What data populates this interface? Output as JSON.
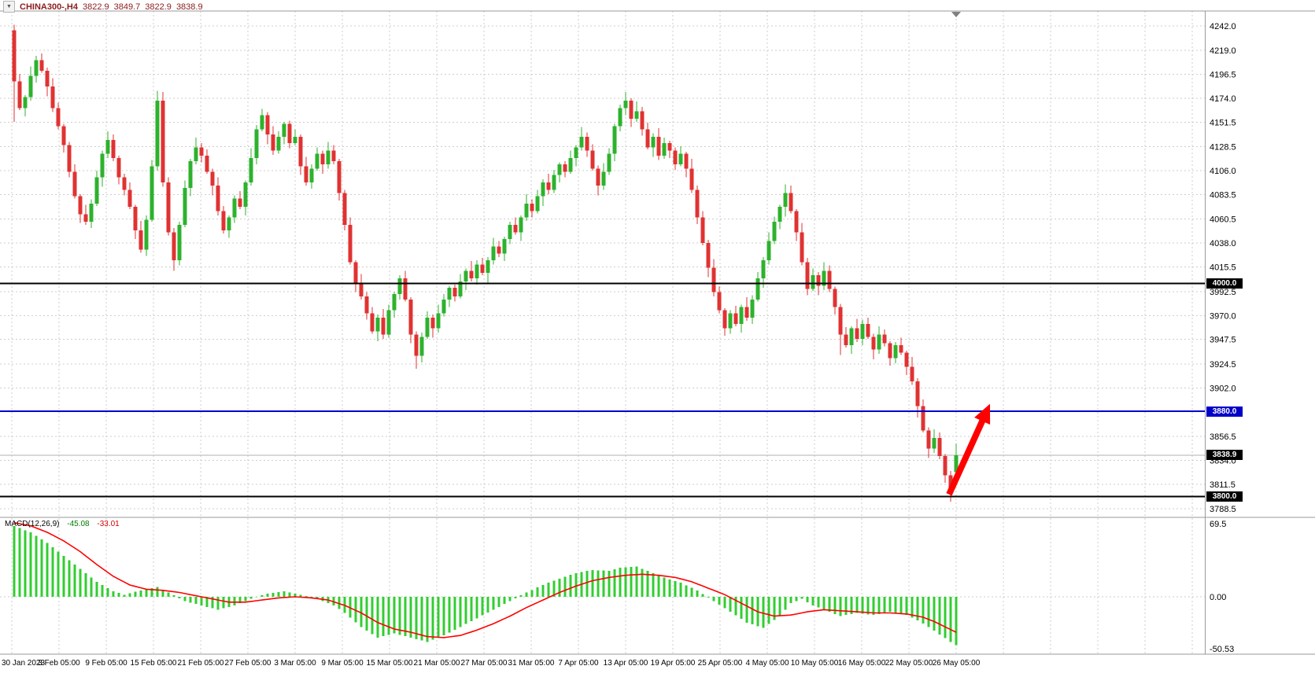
{
  "window": {
    "symbol": "CHINA300-,H4"
  },
  "icons": {
    "one_click": "▼",
    "chart_shift_marker": "▼"
  },
  "colors": {
    "bull": "#2DB22D",
    "bear": "#E03232",
    "grid": "#CDCDCD",
    "macd_hist": "#32CD32",
    "macd_signal": "#FF0000",
    "current_line": "#B0B0B0",
    "header_text": "#8B1C1C",
    "frame": "#9A9A9A",
    "arrow": "#FF0000",
    "hline_black": "#000000",
    "hline_blue": "#0000C8"
  },
  "chart_data": [
    {
      "type": "candlestick",
      "symbol": "CHINA300-",
      "timeframe": "H4",
      "last_candle": {
        "open": "3822.9",
        "high": "3849.7",
        "low": "3822.9",
        "close": "3838.9"
      },
      "price_range": [
        3788.5,
        4242.0
      ],
      "y_ticks": [
        "4242.0",
        "4219.0",
        "4196.5",
        "4174.0",
        "4151.5",
        "4128.5",
        "4106.0",
        "4083.5",
        "4060.5",
        "4038.0",
        "4015.5",
        "3992.5",
        "3970.0",
        "3947.5",
        "3924.5",
        "3902.0",
        "3856.5",
        "3834.0",
        "3811.5",
        "3788.5"
      ],
      "x_labels": [
        "30 Jan 2023",
        "3 Feb 05:00",
        "9 Feb 05:00",
        "15 Feb 05:00",
        "21 Feb 05:00",
        "27 Feb 05:00",
        "3 Mar 05:00",
        "9 Mar 05:00",
        "15 Mar 05:00",
        "21 Mar 05:00",
        "27 Mar 05:00",
        "31 Mar 05:00",
        "7 Apr 05:00",
        "13 Apr 05:00",
        "19 Apr 05:00",
        "25 Apr 05:00",
        "4 May 05:00",
        "10 May 05:00",
        "16 May 05:00",
        "22 May 05:00",
        "26 May 05:00"
      ],
      "first_open": 4238,
      "closes": [
        4190,
        4165,
        4175,
        4195,
        4210,
        4200,
        4185,
        4165,
        4148,
        4130,
        4105,
        4082,
        4065,
        4058,
        4075,
        4100,
        4122,
        4135,
        4118,
        4100,
        4088,
        4072,
        4050,
        4032,
        4060,
        4110,
        4172,
        4095,
        4048,
        4022,
        4055,
        4090,
        4115,
        4128,
        4120,
        4105,
        4092,
        4068,
        4050,
        4062,
        4080,
        4072,
        4095,
        4118,
        4145,
        4158,
        4140,
        4125,
        4138,
        4150,
        4132,
        4138,
        4110,
        4095,
        4108,
        4122,
        4112,
        4125,
        4115,
        4085,
        4055,
        4020,
        4000,
        3988,
        3972,
        3955,
        3968,
        3952,
        3975,
        3990,
        4005,
        3985,
        3952,
        3932,
        3950,
        3968,
        3958,
        3972,
        3985,
        3996,
        3988,
        4002,
        4012,
        4005,
        4018,
        4010,
        4022,
        4035,
        4028,
        4042,
        4055,
        4048,
        4062,
        4075,
        4068,
        4082,
        4095,
        4088,
        4102,
        4112,
        4105,
        4118,
        4128,
        4138,
        4125,
        4108,
        4092,
        4105,
        4122,
        4148,
        4165,
        4172,
        4155,
        4162,
        4145,
        4128,
        4138,
        4120,
        4132,
        4125,
        4112,
        4122,
        4108,
        4088,
        4062,
        4038,
        4015,
        3992,
        3975,
        3958,
        3972,
        3962,
        3978,
        3968,
        3985,
        4005,
        4022,
        4040,
        4058,
        4072,
        4085,
        4068,
        4048,
        4020,
        3995,
        4008,
        3998,
        4012,
        3995,
        3978,
        3952,
        3942,
        3958,
        3948,
        3962,
        3950,
        3938,
        3952,
        3944,
        3930,
        3942,
        3935,
        3922,
        3908,
        3885,
        3862,
        3845,
        3855,
        3838,
        3820,
        3803,
        3838.9
      ],
      "wick_up": [
        3,
        7,
        2,
        9,
        4,
        6,
        3,
        8,
        5,
        2
      ],
      "wick_dn": [
        5,
        2,
        8,
        3,
        6,
        2,
        9,
        4,
        3,
        7
      ],
      "overrides": {
        "0": [
          4238,
          4243,
          4152,
          4190
        ],
        "26": [
          4110,
          4181,
          4106,
          4172
        ],
        "29": [
          4048,
          4052,
          4012,
          4022
        ],
        "73": [
          3952,
          3955,
          3920,
          3932
        ],
        "111": [
          4165,
          4180,
          4158,
          4172
        ],
        "140": [
          4072,
          4093,
          4063,
          4085
        ],
        "150": [
          3978,
          3981,
          3933,
          3952
        ],
        "164": [
          3908,
          3911,
          3874,
          3885
        ],
        "170": [
          3820,
          3824,
          3795,
          3803
        ],
        "171": [
          3822.9,
          3849.7,
          3822.9,
          3838.9
        ]
      },
      "h_lines": [
        {
          "price": 4000.0,
          "tag": "4000.0",
          "color": "#000000"
        },
        {
          "price": 3880.0,
          "tag": "3880.0",
          "color": "#0000C8"
        },
        {
          "price": 3800.0,
          "tag": "3800.0",
          "color": "#000000"
        }
      ],
      "current_price": 3838.9,
      "current_price_tag": "3838.9",
      "arrow": {
        "from_price": 3802,
        "to_price": 3887,
        "color": "#FF0000"
      }
    },
    {
      "type": "macd",
      "label": "MACD(12,26,9)",
      "value_main": "-45.08",
      "value_signal": "-33.01",
      "y_ticks": [
        "69.5",
        "0.00",
        "-50.53"
      ],
      "main_anchors": [
        [
          0,
          66
        ],
        [
          3,
          60
        ],
        [
          6,
          50
        ],
        [
          9,
          38
        ],
        [
          12,
          26
        ],
        [
          15,
          14
        ],
        [
          18,
          5
        ],
        [
          20,
          2
        ],
        [
          23,
          6
        ],
        [
          26,
          9
        ],
        [
          28,
          4
        ],
        [
          31,
          -4
        ],
        [
          34,
          -8
        ],
        [
          37,
          -12
        ],
        [
          40,
          -8
        ],
        [
          43,
          -2
        ],
        [
          46,
          3
        ],
        [
          49,
          5
        ],
        [
          52,
          2
        ],
        [
          55,
          -2
        ],
        [
          58,
          -8
        ],
        [
          60,
          -15
        ],
        [
          63,
          -28
        ],
        [
          66,
          -38
        ],
        [
          69,
          -34
        ],
        [
          72,
          -38
        ],
        [
          75,
          -42
        ],
        [
          78,
          -36
        ],
        [
          81,
          -28
        ],
        [
          84,
          -20
        ],
        [
          87,
          -12
        ],
        [
          90,
          -4
        ],
        [
          93,
          4
        ],
        [
          96,
          11
        ],
        [
          99,
          17
        ],
        [
          102,
          22
        ],
        [
          105,
          25
        ],
        [
          108,
          24
        ],
        [
          110,
          27
        ],
        [
          113,
          28
        ],
        [
          116,
          22
        ],
        [
          119,
          16
        ],
        [
          121,
          13
        ],
        [
          124,
          6
        ],
        [
          127,
          -4
        ],
        [
          130,
          -14
        ],
        [
          133,
          -24
        ],
        [
          136,
          -29
        ],
        [
          139,
          -18
        ],
        [
          141,
          -6
        ],
        [
          143,
          -2
        ],
        [
          145,
          -8
        ],
        [
          147,
          -12
        ],
        [
          150,
          -18
        ],
        [
          153,
          -15
        ],
        [
          156,
          -17
        ],
        [
          159,
          -14
        ],
        [
          162,
          -17
        ],
        [
          164,
          -22
        ],
        [
          166,
          -28
        ],
        [
          168,
          -35
        ],
        [
          170,
          -42
        ],
        [
          171,
          -45.1
        ]
      ],
      "signal_anchors": [
        [
          0,
          69
        ],
        [
          3,
          66
        ],
        [
          6,
          60
        ],
        [
          9,
          52
        ],
        [
          12,
          42
        ],
        [
          15,
          30
        ],
        [
          18,
          19
        ],
        [
          21,
          11
        ],
        [
          24,
          7
        ],
        [
          27,
          6
        ],
        [
          30,
          4
        ],
        [
          33,
          1
        ],
        [
          36,
          -2
        ],
        [
          39,
          -5
        ],
        [
          42,
          -5
        ],
        [
          45,
          -3
        ],
        [
          48,
          -1
        ],
        [
          51,
          0
        ],
        [
          54,
          -1
        ],
        [
          57,
          -3
        ],
        [
          60,
          -8
        ],
        [
          63,
          -15
        ],
        [
          66,
          -24
        ],
        [
          69,
          -30
        ],
        [
          72,
          -33
        ],
        [
          75,
          -37
        ],
        [
          78,
          -38
        ],
        [
          81,
          -36
        ],
        [
          84,
          -31
        ],
        [
          87,
          -25
        ],
        [
          90,
          -18
        ],
        [
          93,
          -10
        ],
        [
          96,
          -3
        ],
        [
          99,
          4
        ],
        [
          102,
          10
        ],
        [
          105,
          15
        ],
        [
          108,
          18
        ],
        [
          111,
          20
        ],
        [
          114,
          21
        ],
        [
          117,
          20
        ],
        [
          120,
          18
        ],
        [
          123,
          14
        ],
        [
          126,
          8
        ],
        [
          129,
          2
        ],
        [
          132,
          -6
        ],
        [
          135,
          -14
        ],
        [
          138,
          -18
        ],
        [
          141,
          -17
        ],
        [
          144,
          -14
        ],
        [
          147,
          -12
        ],
        [
          150,
          -13
        ],
        [
          153,
          -14
        ],
        [
          156,
          -15
        ],
        [
          159,
          -15
        ],
        [
          162,
          -16
        ],
        [
          165,
          -19
        ],
        [
          167,
          -23
        ],
        [
          169,
          -28
        ],
        [
          171,
          -33
        ]
      ]
    }
  ]
}
